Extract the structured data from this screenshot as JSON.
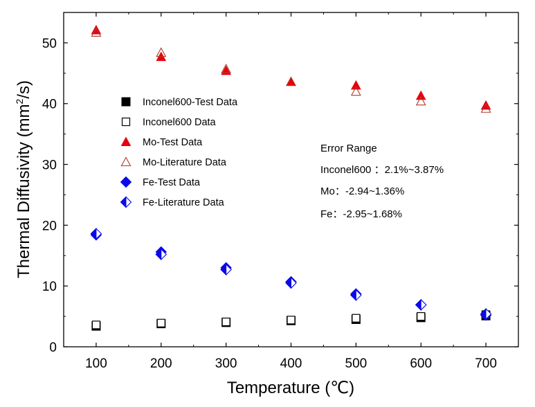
{
  "chart_data": {
    "type": "scatter",
    "title": "",
    "xlabel": "Temperature (℃)",
    "ylabel_main": "Thermal Diffusivity (mm",
    "ylabel_sup": "2",
    "ylabel_end": "/s)",
    "xlim": [
      50,
      750
    ],
    "ylim": [
      0,
      55
    ],
    "xticks": [
      100,
      200,
      300,
      400,
      500,
      600,
      700
    ],
    "yticks": [
      0,
      10,
      20,
      30,
      40,
      50
    ],
    "grid": false,
    "legend_position": "center-left",
    "series": [
      {
        "name": "Inconel600-Test Data",
        "marker": "square-filled",
        "color": "#000000",
        "x": [
          100,
          200,
          300,
          400,
          500,
          600,
          700
        ],
        "y": [
          3.4,
          3.8,
          4.0,
          4.3,
          4.5,
          4.8,
          5.1
        ]
      },
      {
        "name": "Inconel600 Data",
        "marker": "square-open",
        "color": "#000000",
        "x": [
          100,
          200,
          300,
          400,
          500,
          600,
          700
        ],
        "y": [
          3.6,
          3.9,
          4.1,
          4.4,
          4.7,
          5.0,
          5.3
        ]
      },
      {
        "name": "Mo-Test Data",
        "marker": "triangle-filled",
        "color": "#e8000b",
        "x": [
          100,
          200,
          300,
          400,
          500,
          600,
          700
        ],
        "y": [
          52.1,
          47.7,
          45.4,
          43.6,
          43.0,
          41.3,
          39.7
        ]
      },
      {
        "name": "Mo-Literature Data",
        "marker": "triangle-open",
        "color": "#b03a2e",
        "x": [
          100,
          200,
          300,
          400,
          500,
          600,
          700
        ],
        "y": [
          51.7,
          48.4,
          45.7,
          43.6,
          42.0,
          40.4,
          39.2
        ]
      },
      {
        "name": "Fe-Test Data",
        "marker": "diamond-filled",
        "color": "#0a0ae8",
        "x": [
          100,
          200,
          300,
          400,
          500,
          600,
          700
        ],
        "y": [
          18.4,
          15.6,
          13.0,
          10.7,
          8.7,
          6.9,
          5.2
        ]
      },
      {
        "name": "Fe-Literature Data",
        "marker": "diamond-half",
        "color": "#0a0ae8",
        "x": [
          100,
          200,
          300,
          400,
          500,
          600,
          700
        ],
        "y": [
          18.6,
          15.2,
          12.7,
          10.5,
          8.5,
          6.9,
          5.4
        ]
      }
    ],
    "annotations": {
      "title": "Error Range",
      "lines": [
        "Inconel600 ：2.1%~3.87%",
        "Mo：-2.94~1.36%",
        "Fe：-2.95~1.68%"
      ]
    }
  }
}
